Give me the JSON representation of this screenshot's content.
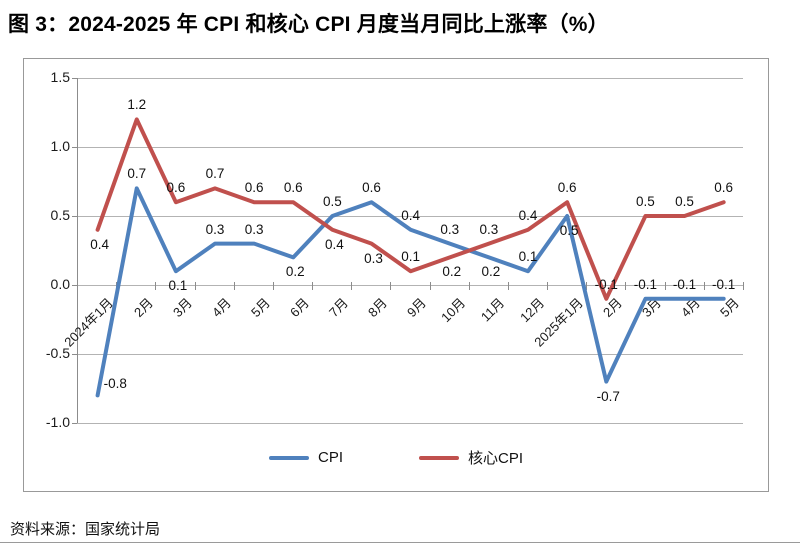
{
  "title": "图 3：2024-2025 年 CPI 和核心 CPI 月度当月同比上涨率（%）",
  "source_note": "资料来源：国家统计局",
  "chart_data": {
    "type": "line",
    "title": "图 3：2024-2025 年 CPI 和核心 CPI 月度当月同比上涨率（%）",
    "categories": [
      "2024年1月",
      "2月",
      "3月",
      "4月",
      "5月",
      "6月",
      "7月",
      "8月",
      "9月",
      "10月",
      "11月",
      "12月",
      "2025年1月",
      "2月",
      "3月",
      "4月",
      "5月"
    ],
    "series": [
      {
        "name": "CPI",
        "color": "#4F81BD",
        "values": [
          -0.8,
          0.7,
          0.1,
          0.3,
          0.3,
          0.2,
          0.5,
          0.6,
          0.4,
          0.3,
          0.2,
          0.1,
          0.5,
          -0.7,
          -0.1,
          -0.1,
          -0.1
        ]
      },
      {
        "name": "核心CPI",
        "color": "#C0504D",
        "values": [
          0.4,
          1.2,
          0.6,
          0.7,
          0.6,
          0.6,
          0.4,
          0.3,
          0.1,
          0.2,
          0.3,
          0.4,
          0.6,
          -0.1,
          0.5,
          0.5,
          0.6
        ]
      }
    ],
    "ylim": [
      -1.0,
      1.5
    ],
    "ytick_step": 0.5,
    "yticks": [
      "1.5",
      "1.0",
      "0.5",
      "0.0",
      "-0.5",
      "-1.0"
    ],
    "xlabel": "",
    "ylabel": "",
    "grid": true,
    "data_labels": true,
    "legend_position": "bottom"
  }
}
